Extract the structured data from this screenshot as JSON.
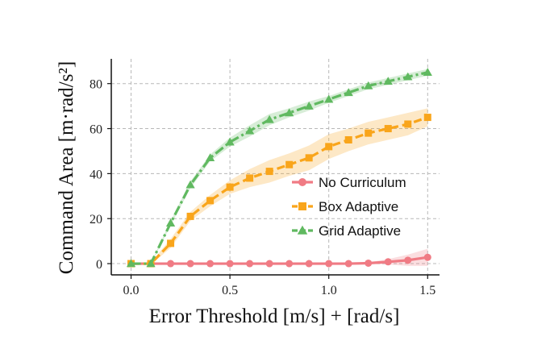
{
  "chart_data": {
    "type": "line",
    "xlabel": "Error Threshold [m/s] + [rad/s]",
    "ylabel": "Command Area [m·rad/s²]",
    "xlim": [
      -0.1,
      1.56
    ],
    "ylim": [
      -5,
      91
    ],
    "xticks": [
      "0.0",
      "0.5",
      "1.0",
      "1.5"
    ],
    "yticks": [
      "0",
      "20",
      "40",
      "60",
      "80"
    ],
    "grid": true,
    "legend_position": "center-right",
    "x": [
      0.0,
      0.1,
      0.2,
      0.3,
      0.4,
      0.5,
      0.6,
      0.7,
      0.8,
      0.9,
      1.0,
      1.1,
      1.2,
      1.3,
      1.4,
      1.5
    ],
    "series": [
      {
        "name": "No Curriculum",
        "color": "#f07b84",
        "marker": "circle",
        "linestyle": "solid",
        "values": [
          0,
          0,
          0,
          0,
          0,
          0,
          0,
          0,
          0,
          0,
          0,
          0,
          0.2,
          0.8,
          1.5,
          2.8
        ],
        "band": [
          0,
          0,
          0,
          0,
          0,
          0,
          0,
          0,
          0,
          0,
          0,
          0,
          0.4,
          1.2,
          2.5,
          3.8
        ]
      },
      {
        "name": "Box Adaptive",
        "color": "#f9a51b",
        "marker": "square",
        "linestyle": "dashed",
        "values": [
          0,
          0,
          9,
          21,
          28,
          34,
          38,
          41,
          44,
          47,
          52,
          55,
          58,
          60,
          62,
          65
        ],
        "band": [
          0,
          0.5,
          2,
          2,
          2.5,
          3,
          4,
          5,
          5,
          5.5,
          5.5,
          5,
          5,
          5,
          5,
          4
        ]
      },
      {
        "name": "Grid Adaptive",
        "color": "#60b960",
        "marker": "triangle",
        "linestyle": "dashdot",
        "values": [
          0,
          0,
          18,
          35,
          47,
          54,
          59,
          64,
          67,
          70,
          73,
          76,
          79,
          81,
          83,
          85
        ],
        "band": [
          0,
          0.3,
          1,
          1.5,
          1.5,
          2,
          2.5,
          2.5,
          2,
          2,
          1.5,
          1.5,
          1.5,
          1.5,
          1.5,
          1.5
        ]
      }
    ]
  }
}
